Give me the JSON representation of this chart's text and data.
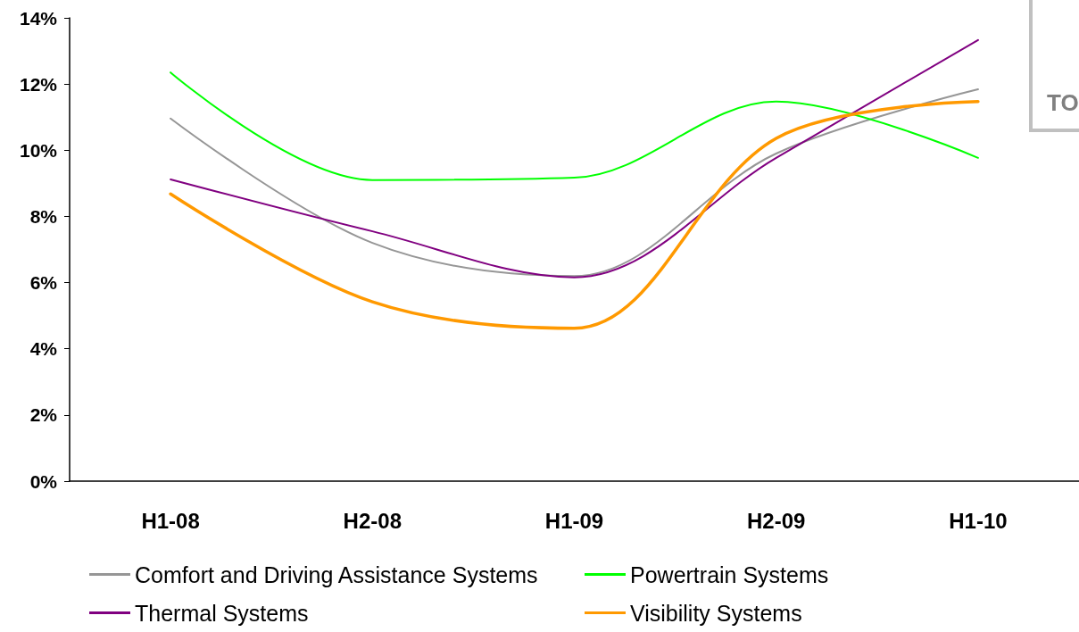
{
  "chart_data": {
    "type": "line",
    "categories": [
      "H1-08",
      "H2-08",
      "H1-09",
      "H2-09",
      "H1-10"
    ],
    "series": [
      {
        "name": "Comfort and Driving Assistance Systems",
        "color": "#969696",
        "values": [
          10.96,
          7.2,
          6.2,
          9.9,
          11.84
        ]
      },
      {
        "name": "Powertrain Systems",
        "color": "#00ff00",
        "values": [
          12.35,
          9.1,
          9.17,
          11.47,
          9.77
        ]
      },
      {
        "name": "Thermal Systems",
        "color": "#800080",
        "values": [
          9.12,
          7.55,
          6.16,
          9.77,
          13.33
        ]
      },
      {
        "name": "Visibility Systems",
        "color": "#ff9900",
        "values": [
          8.68,
          5.42,
          4.62,
          10.36,
          11.47
        ]
      }
    ],
    "ylim": [
      0,
      14
    ],
    "yticks": [
      {
        "value": 0,
        "label": "0%"
      },
      {
        "value": 2,
        "label": "2%"
      },
      {
        "value": 4,
        "label": "4%"
      },
      {
        "value": 6,
        "label": "6%"
      },
      {
        "value": 8,
        "label": "8%"
      },
      {
        "value": 10,
        "label": "10%"
      },
      {
        "value": 12,
        "label": "12%"
      },
      {
        "value": 14,
        "label": "14%"
      }
    ],
    "grid": false,
    "legend": "bottom",
    "marker": "none",
    "annotations": [
      "TO"
    ]
  }
}
